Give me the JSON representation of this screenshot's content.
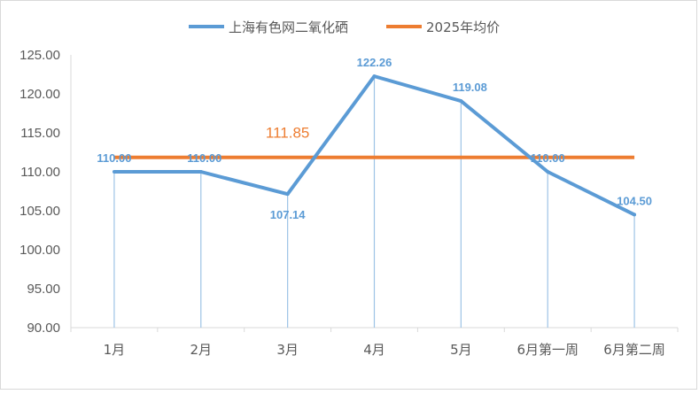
{
  "chart_data": {
    "type": "line",
    "categories": [
      "1月",
      "2月",
      "3月",
      "4月",
      "5月",
      "6月第一周",
      "6月第二周"
    ],
    "series": [
      {
        "name": "上海有色网二氧化硒",
        "values": [
          110.0,
          110.0,
          107.14,
          122.26,
          119.08,
          110.0,
          104.5
        ],
        "labels": [
          "110.00",
          "110.00",
          "107.14",
          "122.26",
          "119.08",
          "110.00",
          "104.50"
        ],
        "color": "#5b9bd5"
      },
      {
        "name": "2025年均价",
        "values": [
          111.85,
          111.85,
          111.85,
          111.85,
          111.85,
          111.85,
          111.85
        ],
        "label": "111.85",
        "color": "#ed7d31"
      }
    ],
    "yticks": [
      "90.00",
      "95.00",
      "100.00",
      "105.00",
      "110.00",
      "115.00",
      "120.00",
      "125.00"
    ],
    "ylim": [
      90,
      125
    ],
    "legend_position": "top",
    "drop_lines": true,
    "grid": false
  }
}
